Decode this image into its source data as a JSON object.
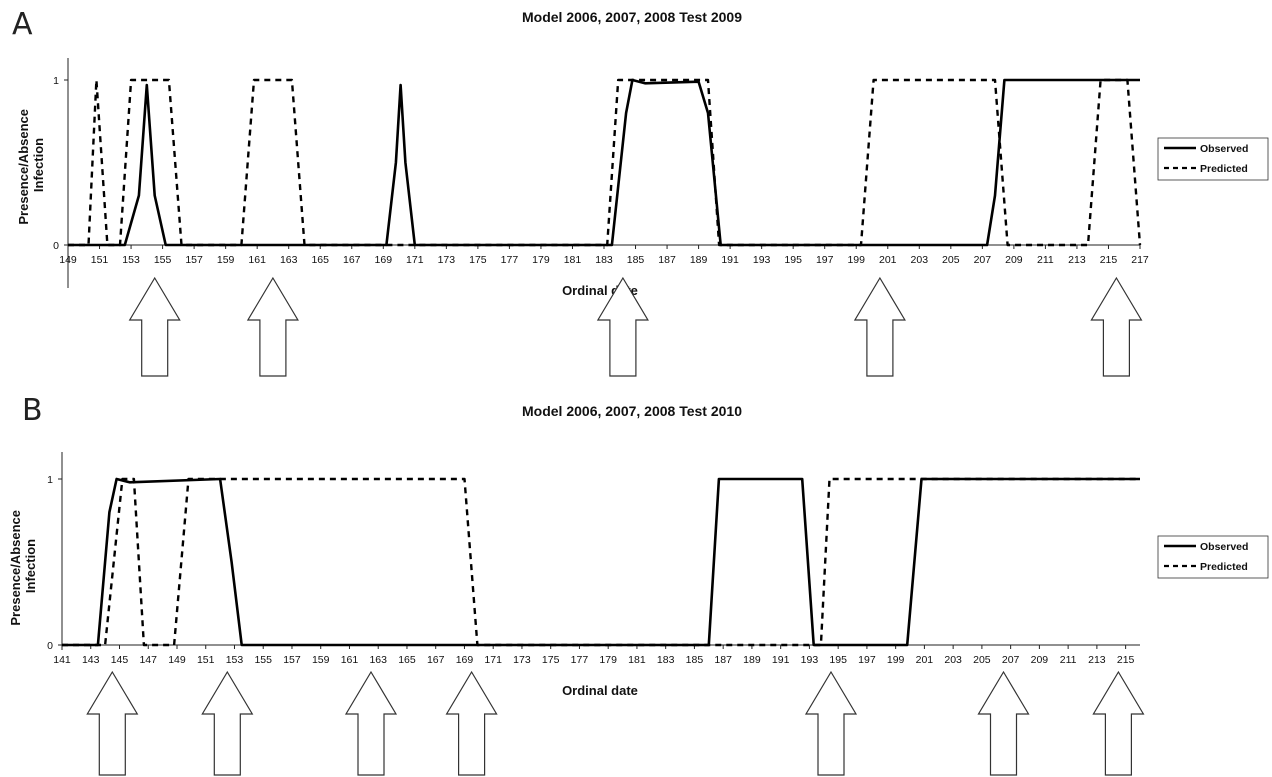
{
  "chart_data": [
    {
      "type": "line",
      "panel": "A",
      "title": "Model 2006, 2007, 2008    Test 2009",
      "xlabel": "Ordinal date",
      "ylabel": "Presence/Absence Infection",
      "xlim": [
        149,
        217
      ],
      "ylim": [
        0,
        1
      ],
      "xticks": [
        149,
        151,
        153,
        155,
        157,
        159,
        161,
        163,
        165,
        167,
        169,
        171,
        173,
        175,
        177,
        179,
        181,
        183,
        185,
        187,
        189,
        191,
        193,
        195,
        197,
        199,
        201,
        203,
        205,
        207,
        209,
        211,
        213,
        215,
        217
      ],
      "yticks": [
        0,
        1
      ],
      "legend_position": "right",
      "series": [
        {
          "name": "Observed",
          "style": "solid",
          "points": [
            [
              149,
              0
            ],
            [
              152.6,
              0
            ],
            [
              153.5,
              0.3
            ],
            [
              154,
              0.97
            ],
            [
              154.5,
              0.3
            ],
            [
              155.2,
              0
            ],
            [
              169.2,
              0
            ],
            [
              169.8,
              0.5
            ],
            [
              170.1,
              0.97
            ],
            [
              170.4,
              0.5
            ],
            [
              171,
              0
            ],
            [
              183.5,
              0
            ],
            [
              184.4,
              0.8
            ],
            [
              184.8,
              1
            ],
            [
              185.6,
              0.98
            ],
            [
              189,
              0.99
            ],
            [
              189.6,
              0.8
            ],
            [
              190.4,
              0
            ],
            [
              207.3,
              0
            ],
            [
              207.8,
              0.3
            ],
            [
              208.4,
              1
            ],
            [
              209,
              1
            ],
            [
              217,
              1
            ]
          ]
        },
        {
          "name": "Predicted",
          "style": "dashed",
          "points": [
            [
              149,
              0
            ],
            [
              150.3,
              0
            ],
            [
              150.8,
              1
            ],
            [
              151.5,
              0
            ],
            [
              152.3,
              0
            ],
            [
              153,
              1
            ],
            [
              155.4,
              1
            ],
            [
              156.2,
              0
            ],
            [
              160,
              0
            ],
            [
              160.8,
              1
            ],
            [
              163.2,
              1
            ],
            [
              164,
              0
            ],
            [
              183.2,
              0
            ],
            [
              183.9,
              1
            ],
            [
              189.6,
              1
            ],
            [
              190.3,
              0
            ],
            [
              199.3,
              0
            ],
            [
              200.1,
              1
            ],
            [
              207.8,
              1
            ],
            [
              208.6,
              0
            ],
            [
              213.7,
              0
            ],
            [
              214.5,
              1
            ],
            [
              216.2,
              1
            ],
            [
              217,
              0
            ]
          ]
        }
      ],
      "arrows_at": [
        154.5,
        162,
        184.2,
        200.5,
        215.5
      ]
    },
    {
      "type": "line",
      "panel": "B",
      "title": "Model 2006, 2007, 2008  Test 2010",
      "xlabel": "Ordinal date",
      "ylabel": "Presence/Absence Infection",
      "xlim": [
        141,
        216
      ],
      "ylim": [
        0,
        1
      ],
      "xticks": [
        141,
        143,
        145,
        147,
        149,
        151,
        153,
        155,
        157,
        159,
        161,
        163,
        165,
        167,
        169,
        171,
        173,
        175,
        177,
        179,
        181,
        183,
        185,
        187,
        189,
        191,
        193,
        195,
        197,
        199,
        201,
        203,
        205,
        207,
        209,
        211,
        213,
        215
      ],
      "yticks": [
        0,
        1
      ],
      "legend_position": "right",
      "series": [
        {
          "name": "Observed",
          "style": "solid",
          "points": [
            [
              141,
              0
            ],
            [
              143.5,
              0
            ],
            [
              144.3,
              0.8
            ],
            [
              144.8,
              1
            ],
            [
              145.7,
              0.98
            ],
            [
              152,
              1
            ],
            [
              152.8,
              0.5
            ],
            [
              153.5,
              0
            ],
            [
              186,
              0
            ],
            [
              186.7,
              1
            ],
            [
              192.5,
              1
            ],
            [
              193.3,
              0
            ],
            [
              199.8,
              0
            ],
            [
              200.8,
              1
            ],
            [
              216,
              1
            ]
          ]
        },
        {
          "name": "Predicted",
          "style": "dashed",
          "points": [
            [
              141,
              0
            ],
            [
              144,
              0
            ],
            [
              145.2,
              1
            ],
            [
              146,
              1
            ],
            [
              146.7,
              0
            ],
            [
              148.8,
              0
            ],
            [
              149.8,
              1
            ],
            [
              152,
              1
            ],
            [
              153,
              1
            ],
            [
              169,
              1
            ],
            [
              169.9,
              0
            ],
            [
              193.8,
              0
            ],
            [
              194.4,
              1
            ],
            [
              216,
              1
            ]
          ]
        }
      ],
      "arrows_at": [
        144.5,
        152.5,
        162.5,
        169.5,
        194.5,
        206.5,
        214.5
      ]
    }
  ],
  "panel_letters": [
    "A",
    "B"
  ]
}
